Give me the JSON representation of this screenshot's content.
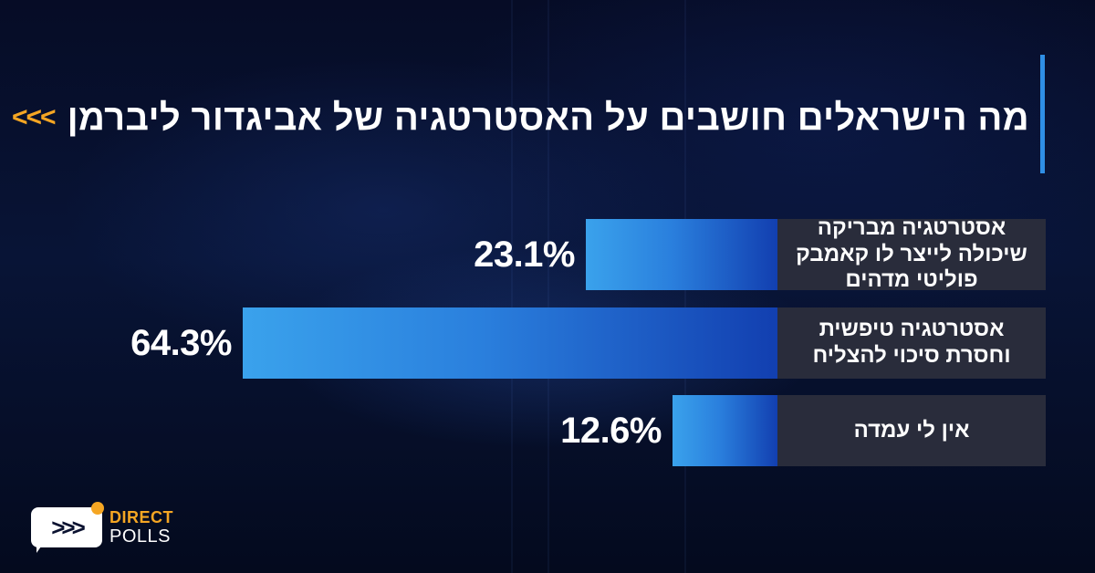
{
  "header": {
    "title": "מה הישראלים חושבים על האסטרטגיה של אביגדור ליברמן",
    "arrows": "<<<"
  },
  "colors": {
    "accent": "#f5a623",
    "bar_light": "#3aa2ec",
    "bar_dark": "#123fb0",
    "label_bg": "#292c3b",
    "title_rule": "#2f8fe6"
  },
  "chart_data": {
    "type": "bar",
    "orientation": "horizontal",
    "categories": [
      "אסטרטגיה מבריקה שיכולה לייצר לו קאמבק פוליטי מדהים",
      "אסטרטגיה טיפשית וחסרת סיכוי להצליח",
      "אין לי עמדה"
    ],
    "values": [
      23.1,
      64.3,
      12.6
    ],
    "value_labels": [
      "23.1%",
      "64.3%",
      "12.6%"
    ],
    "xlim": [
      0,
      100
    ],
    "grid": false,
    "legend": "none"
  },
  "logo": {
    "icon": "speech-bubble-arrows-icon",
    "arrows": ">>>",
    "line1": "DIRECT",
    "line2": "POLLS"
  }
}
